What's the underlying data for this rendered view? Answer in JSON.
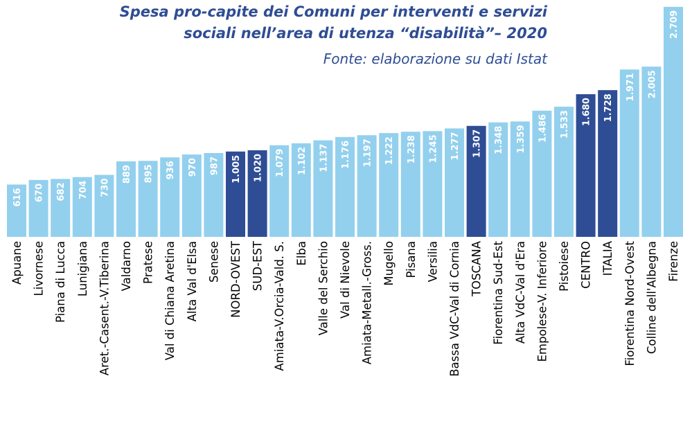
{
  "chart_data": {
    "type": "bar",
    "title": [
      "Spesa pro-capite dei Comuni per interventi e servizi",
      "sociali nell’area di utenza “disabilità”– 2020"
    ],
    "subtitle": "Fonte: elaborazione su dati Istat",
    "categories": [
      "Apuane",
      "Livornese",
      "Piana di Lucca",
      "Lunigiana",
      "Aret.-Casent.-V.Tiberina",
      "Valdarno",
      "Pratese",
      "Val di Chiana Aretina",
      "Alta Val d'Elsa",
      "Senese",
      "NORD-OVEST",
      "SUD-EST",
      "Amiata-V.Orcia-Vald. S.",
      "Elba",
      "Valle del Serchio",
      "Val di Nievole",
      "Amiata-Metall.-Gross.",
      "Mugello",
      "Pisana",
      "Versilia",
      "Bassa VdC-Val di Cornia",
      "TOSCANA",
      "Fiorentina Sud-Est",
      "Alta VdC-Val d'Era",
      "Empolese-V. Inferiore",
      "Pistoiese",
      "CENTRO",
      "ITALIA",
      "Fiorentina Nord-Ovest",
      "Colline dell'Albegna",
      "Firenze"
    ],
    "values": [
      616,
      670,
      682,
      704,
      730,
      889,
      895,
      936,
      970,
      987,
      1005,
      1020,
      1079,
      1102,
      1137,
      1176,
      1197,
      1222,
      1238,
      1245,
      1277,
      1307,
      1348,
      1359,
      1486,
      1533,
      1680,
      1728,
      1971,
      2005,
      2709
    ],
    "value_labels": [
      "616",
      "670",
      "682",
      "704",
      "730",
      "889",
      "895",
      "936",
      "970",
      "987",
      "1.005",
      "1.020",
      "1.079",
      "1.102",
      "1.137",
      "1.176",
      "1.197",
      "1.222",
      "1.238",
      "1.245",
      "1.277",
      "1.307",
      "1.348",
      "1.359",
      "1.486",
      "1.533",
      "1.680",
      "1.728",
      "1.971",
      "2.005",
      "2.709"
    ],
    "colors": [
      "#93d0ee",
      "#93d0ee",
      "#93d0ee",
      "#93d0ee",
      "#93d0ee",
      "#93d0ee",
      "#93d0ee",
      "#93d0ee",
      "#93d0ee",
      "#93d0ee",
      "#2f4d94",
      "#2f4d94",
      "#93d0ee",
      "#93d0ee",
      "#93d0ee",
      "#93d0ee",
      "#93d0ee",
      "#93d0ee",
      "#93d0ee",
      "#93d0ee",
      "#93d0ee",
      "#2f4d94",
      "#93d0ee",
      "#93d0ee",
      "#93d0ee",
      "#93d0ee",
      "#2f4d94",
      "#2f4d94",
      "#93d0ee",
      "#93d0ee",
      "#93d0ee"
    ]
  }
}
